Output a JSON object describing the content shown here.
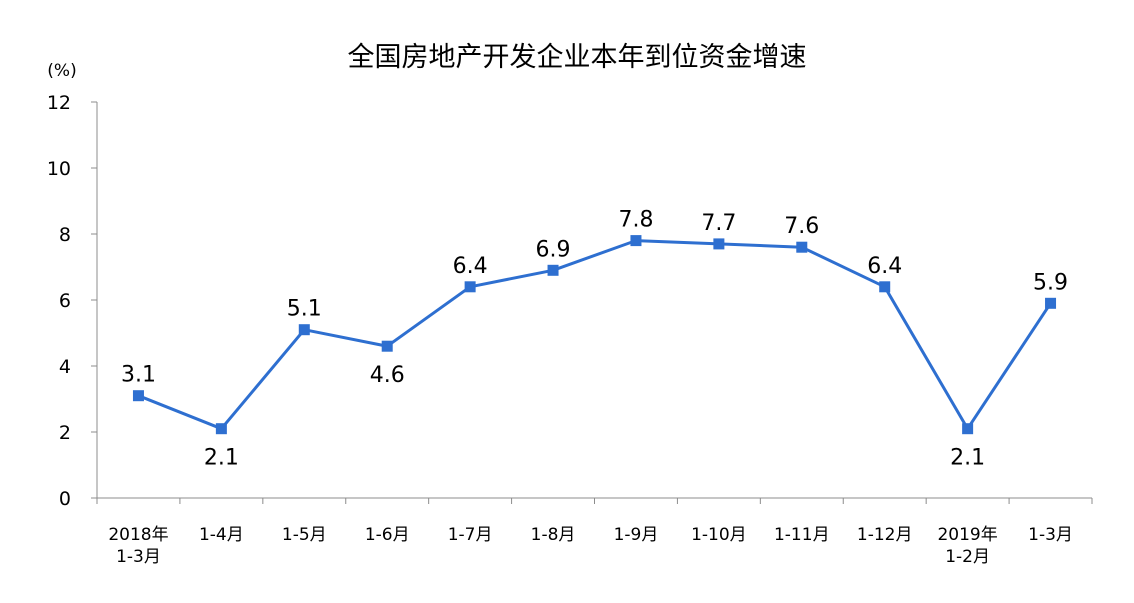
{
  "chart_data": {
    "type": "line",
    "title": "全国房地产开发企业本年到位资金增速",
    "unit_label": "(%)",
    "xlabel": "",
    "ylabel": "",
    "ylim": [
      0,
      12
    ],
    "yticks": [
      0,
      2,
      4,
      6,
      8,
      10,
      12
    ],
    "grid": false,
    "legend": "none",
    "categories": [
      [
        "2018年",
        "1-3月"
      ],
      [
        "1-4月"
      ],
      [
        "1-5月"
      ],
      [
        "1-6月"
      ],
      [
        "1-7月"
      ],
      [
        "1-8月"
      ],
      [
        "1-9月"
      ],
      [
        "1-10月"
      ],
      [
        "1-11月"
      ],
      [
        "1-12月"
      ],
      [
        "2019年",
        "1-2月"
      ],
      [
        "1-3月"
      ]
    ],
    "series": [
      {
        "values": [
          3.1,
          2.1,
          5.1,
          4.6,
          6.4,
          6.9,
          7.8,
          7.7,
          7.6,
          6.4,
          2.1,
          5.9
        ],
        "labels": [
          "3.1",
          "2.1",
          "5.1",
          "4.6",
          "6.4",
          "6.9",
          "7.8",
          "7.7",
          "7.6",
          "6.4",
          "2.1",
          "5.9"
        ],
        "label_position": [
          "above",
          "below",
          "above",
          "below",
          "above",
          "above",
          "above",
          "above",
          "above",
          "above",
          "below",
          "above"
        ],
        "color": "#2e6fd0",
        "marker": "square"
      }
    ]
  }
}
